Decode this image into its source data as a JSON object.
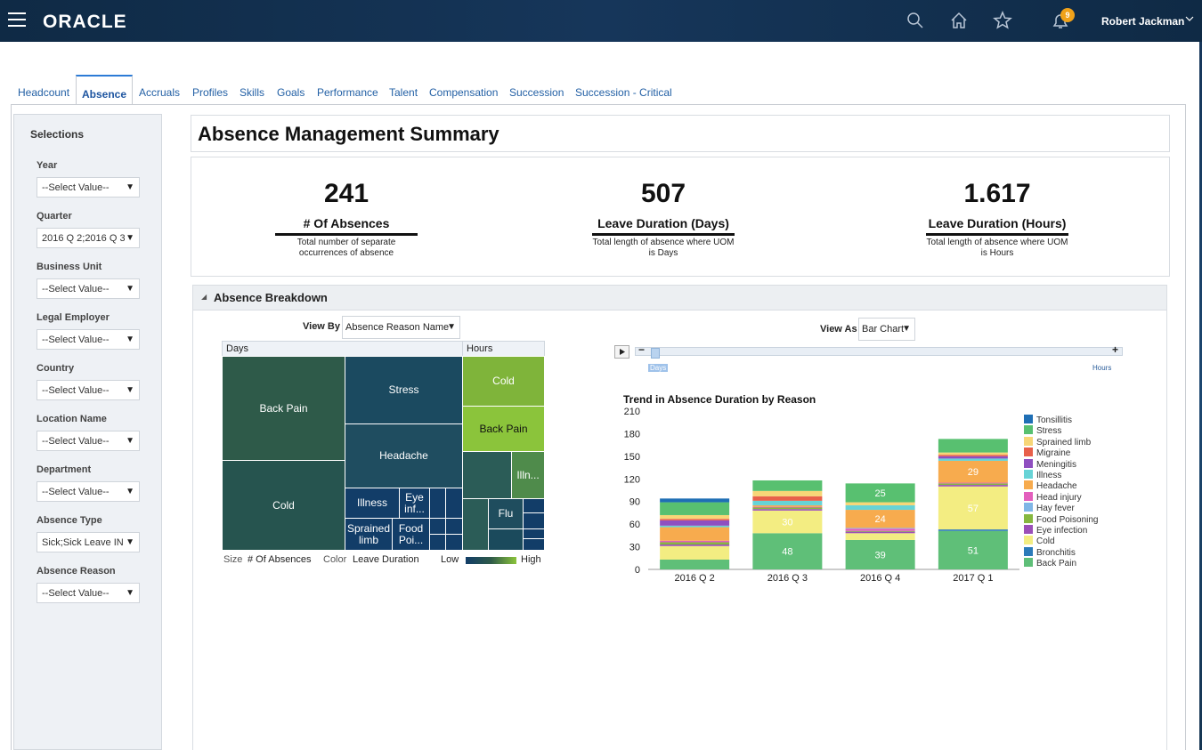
{
  "topbar": {
    "brand": "ORACLE",
    "user": "Robert Jackman",
    "notification_count": "9",
    "icons": [
      "menu-icon",
      "search-icon",
      "home-icon",
      "star-icon",
      "bell-icon",
      "chevron-down-icon"
    ]
  },
  "tabs": [
    "Headcount",
    "Absence",
    "Accruals",
    "Profiles",
    "Skills",
    "Goals",
    "Performance",
    "Talent",
    "Compensation",
    "Succession",
    "Succession - Critical"
  ],
  "active_tab": "Absence",
  "sidebar": {
    "title": "Selections",
    "filters": [
      {
        "label": "Year",
        "value": "--Select Value--"
      },
      {
        "label": "Quarter",
        "value": "2016 Q 2;2016 Q 3"
      },
      {
        "label": "Business Unit",
        "value": "--Select Value--"
      },
      {
        "label": "Legal Employer",
        "value": "--Select Value--"
      },
      {
        "label": "Country",
        "value": "--Select Value--"
      },
      {
        "label": "Location Name",
        "value": "--Select Value--"
      },
      {
        "label": "Department",
        "value": "--Select Value--"
      },
      {
        "label": "Absence Type",
        "value": "Sick;Sick Leave IN"
      },
      {
        "label": "Absence Reason",
        "value": "--Select Value--"
      }
    ]
  },
  "page_title": "Absence Management Summary",
  "kpis": [
    {
      "value": "241",
      "label": "# Of Absences",
      "desc": "Total number of separate occurrences of absence"
    },
    {
      "value": "507",
      "label": "Leave Duration (Days)",
      "desc": "Total length of absence where UOM is Days"
    },
    {
      "value": "1.617",
      "label": "Leave Duration (Hours)",
      "desc": "Total length of absence where UOM is Hours"
    }
  ],
  "breakdown": {
    "title": "Absence Breakdown",
    "view_by_label": "View By",
    "view_by_value": "Absence Reason Name",
    "view_as_label": "View As",
    "view_as_value": "Bar Chart",
    "slider": {
      "left_label": "Days",
      "right_label": "Hours",
      "minus": "−",
      "plus": "+"
    }
  },
  "treemap": {
    "groups": [
      "Days",
      "Hours"
    ],
    "cells": [
      "Back Pain",
      "Stress",
      "Headache",
      "Cold",
      "Illness",
      "Eye inf...",
      "Sprained limb",
      "Food Poi...",
      "Cold",
      "Back Pain",
      "Illn...",
      "Flu"
    ],
    "legend": {
      "size_label": "Size",
      "size_value": "# Of Absences",
      "color_label": "Color",
      "color_value": "Leave Duration",
      "low": "Low",
      "high": "High"
    }
  },
  "chart_data": {
    "type": "bar",
    "stacked": true,
    "title": "Trend in Absence Duration by Reason",
    "categories": [
      "2016 Q 2",
      "2016 Q 3",
      "2016 Q 4",
      "2017 Q 1"
    ],
    "ylim": [
      0,
      210
    ],
    "yticks": [
      0,
      30,
      60,
      90,
      120,
      150,
      180,
      210
    ],
    "legend_position": "right",
    "series": [
      {
        "name": "Back Pain",
        "color": "#5fbf78",
        "values": [
          13,
          48,
          39,
          51
        ]
      },
      {
        "name": "Bronchitis",
        "color": "#2b7bb9",
        "values": [
          0,
          0,
          0,
          2
        ]
      },
      {
        "name": "Cold",
        "color": "#f3ed82",
        "values": [
          18,
          30,
          9,
          57
        ]
      },
      {
        "name": "Eye infection",
        "color": "#9b4fb8",
        "values": [
          2,
          2,
          2,
          2
        ]
      },
      {
        "name": "Food Poisoning",
        "color": "#86b83f",
        "values": [
          3,
          2,
          1,
          2
        ]
      },
      {
        "name": "Head injury",
        "color": "#e35fbd",
        "values": [
          2,
          1,
          3,
          1
        ]
      },
      {
        "name": "Hay fever",
        "color": "#7fb6e6",
        "values": [
          0,
          0,
          1,
          0
        ]
      },
      {
        "name": "Headache",
        "color": "#f7ab4e",
        "values": [
          18,
          2,
          24,
          29
        ]
      },
      {
        "name": "Illness",
        "color": "#67d3d6",
        "values": [
          2,
          6,
          6,
          3
        ]
      },
      {
        "name": "Meningitis",
        "color": "#8f4fc0",
        "values": [
          7,
          0,
          0,
          3
        ]
      },
      {
        "name": "Migraine",
        "color": "#e8604a",
        "values": [
          2,
          6,
          0,
          2
        ]
      },
      {
        "name": "Sprained limb",
        "color": "#f7d677",
        "values": [
          5,
          7,
          4,
          3
        ]
      },
      {
        "name": "Stress",
        "color": "#58c070",
        "values": [
          17,
          14,
          25,
          18
        ]
      },
      {
        "name": "Tonsillitis",
        "color": "#1f6fb5",
        "values": [
          5,
          0,
          0,
          0
        ]
      }
    ],
    "data_labels": [
      {
        "series": "Back Pain",
        "category": "2016 Q 3",
        "text": "48"
      },
      {
        "series": "Back Pain",
        "category": "2016 Q 4",
        "text": "39"
      },
      {
        "series": "Back Pain",
        "category": "2017 Q 1",
        "text": "51"
      },
      {
        "series": "Cold",
        "category": "2016 Q 3",
        "text": "30"
      },
      {
        "series": "Cold",
        "category": "2017 Q 1",
        "text": "57"
      },
      {
        "series": "Headache",
        "category": "2016 Q 4",
        "text": "24"
      },
      {
        "series": "Headache",
        "category": "2017 Q 1",
        "text": "29"
      },
      {
        "series": "Stress",
        "category": "2016 Q 4",
        "text": "25"
      }
    ],
    "legend_order": [
      "Tonsillitis",
      "Stress",
      "Sprained limb",
      "Migraine",
      "Meningitis",
      "Illness",
      "Headache",
      "Head injury",
      "Hay fever",
      "Food Poisoning",
      "Eye infection",
      "Cold",
      "Bronchitis",
      "Back Pain"
    ]
  }
}
